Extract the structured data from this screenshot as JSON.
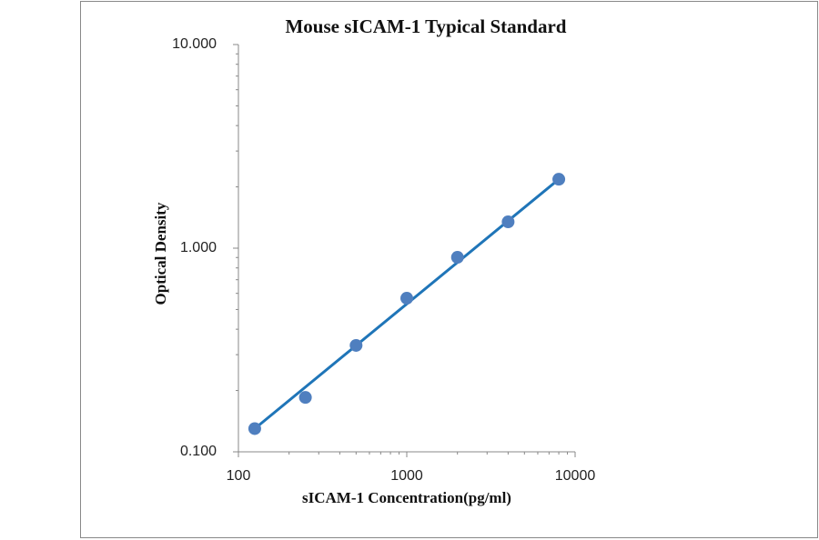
{
  "chart_data": {
    "type": "scatter",
    "title": "Mouse sICAM-1 Typical Standard",
    "x_label": "sICAM-1  Concentration(pg/ml)",
    "y_label": "Optical Density",
    "x_scale": "log",
    "y_scale": "log",
    "x": [
      125,
      250,
      500,
      1000,
      2000,
      4000,
      8000
    ],
    "values": [
      0.13,
      0.185,
      0.333,
      0.568,
      0.902,
      1.347,
      2.18
    ],
    "color": "#4f7fbf",
    "trendline": {
      "x": [
        125,
        8000
      ],
      "values": [
        0.13,
        2.18
      ],
      "color": "#1f75b8"
    },
    "xlim": [
      100,
      10000
    ],
    "ylim": [
      0.1,
      10
    ],
    "xticks": [
      100,
      1000,
      10000
    ],
    "yticks": [
      {
        "value": 0.1,
        "label": "0.100"
      },
      {
        "value": 1,
        "label": "1.000"
      },
      {
        "value": 10,
        "label": "10.000"
      }
    ],
    "xticks_minor": [
      200,
      300,
      400,
      500,
      600,
      700,
      800,
      900,
      2000,
      3000,
      4000,
      5000,
      6000,
      7000,
      8000,
      9000
    ],
    "yticks_minor": [
      0.2,
      0.3,
      0.4,
      0.5,
      0.6,
      0.7,
      0.8,
      0.9,
      2,
      3,
      4,
      5,
      6,
      7,
      8,
      9
    ]
  }
}
